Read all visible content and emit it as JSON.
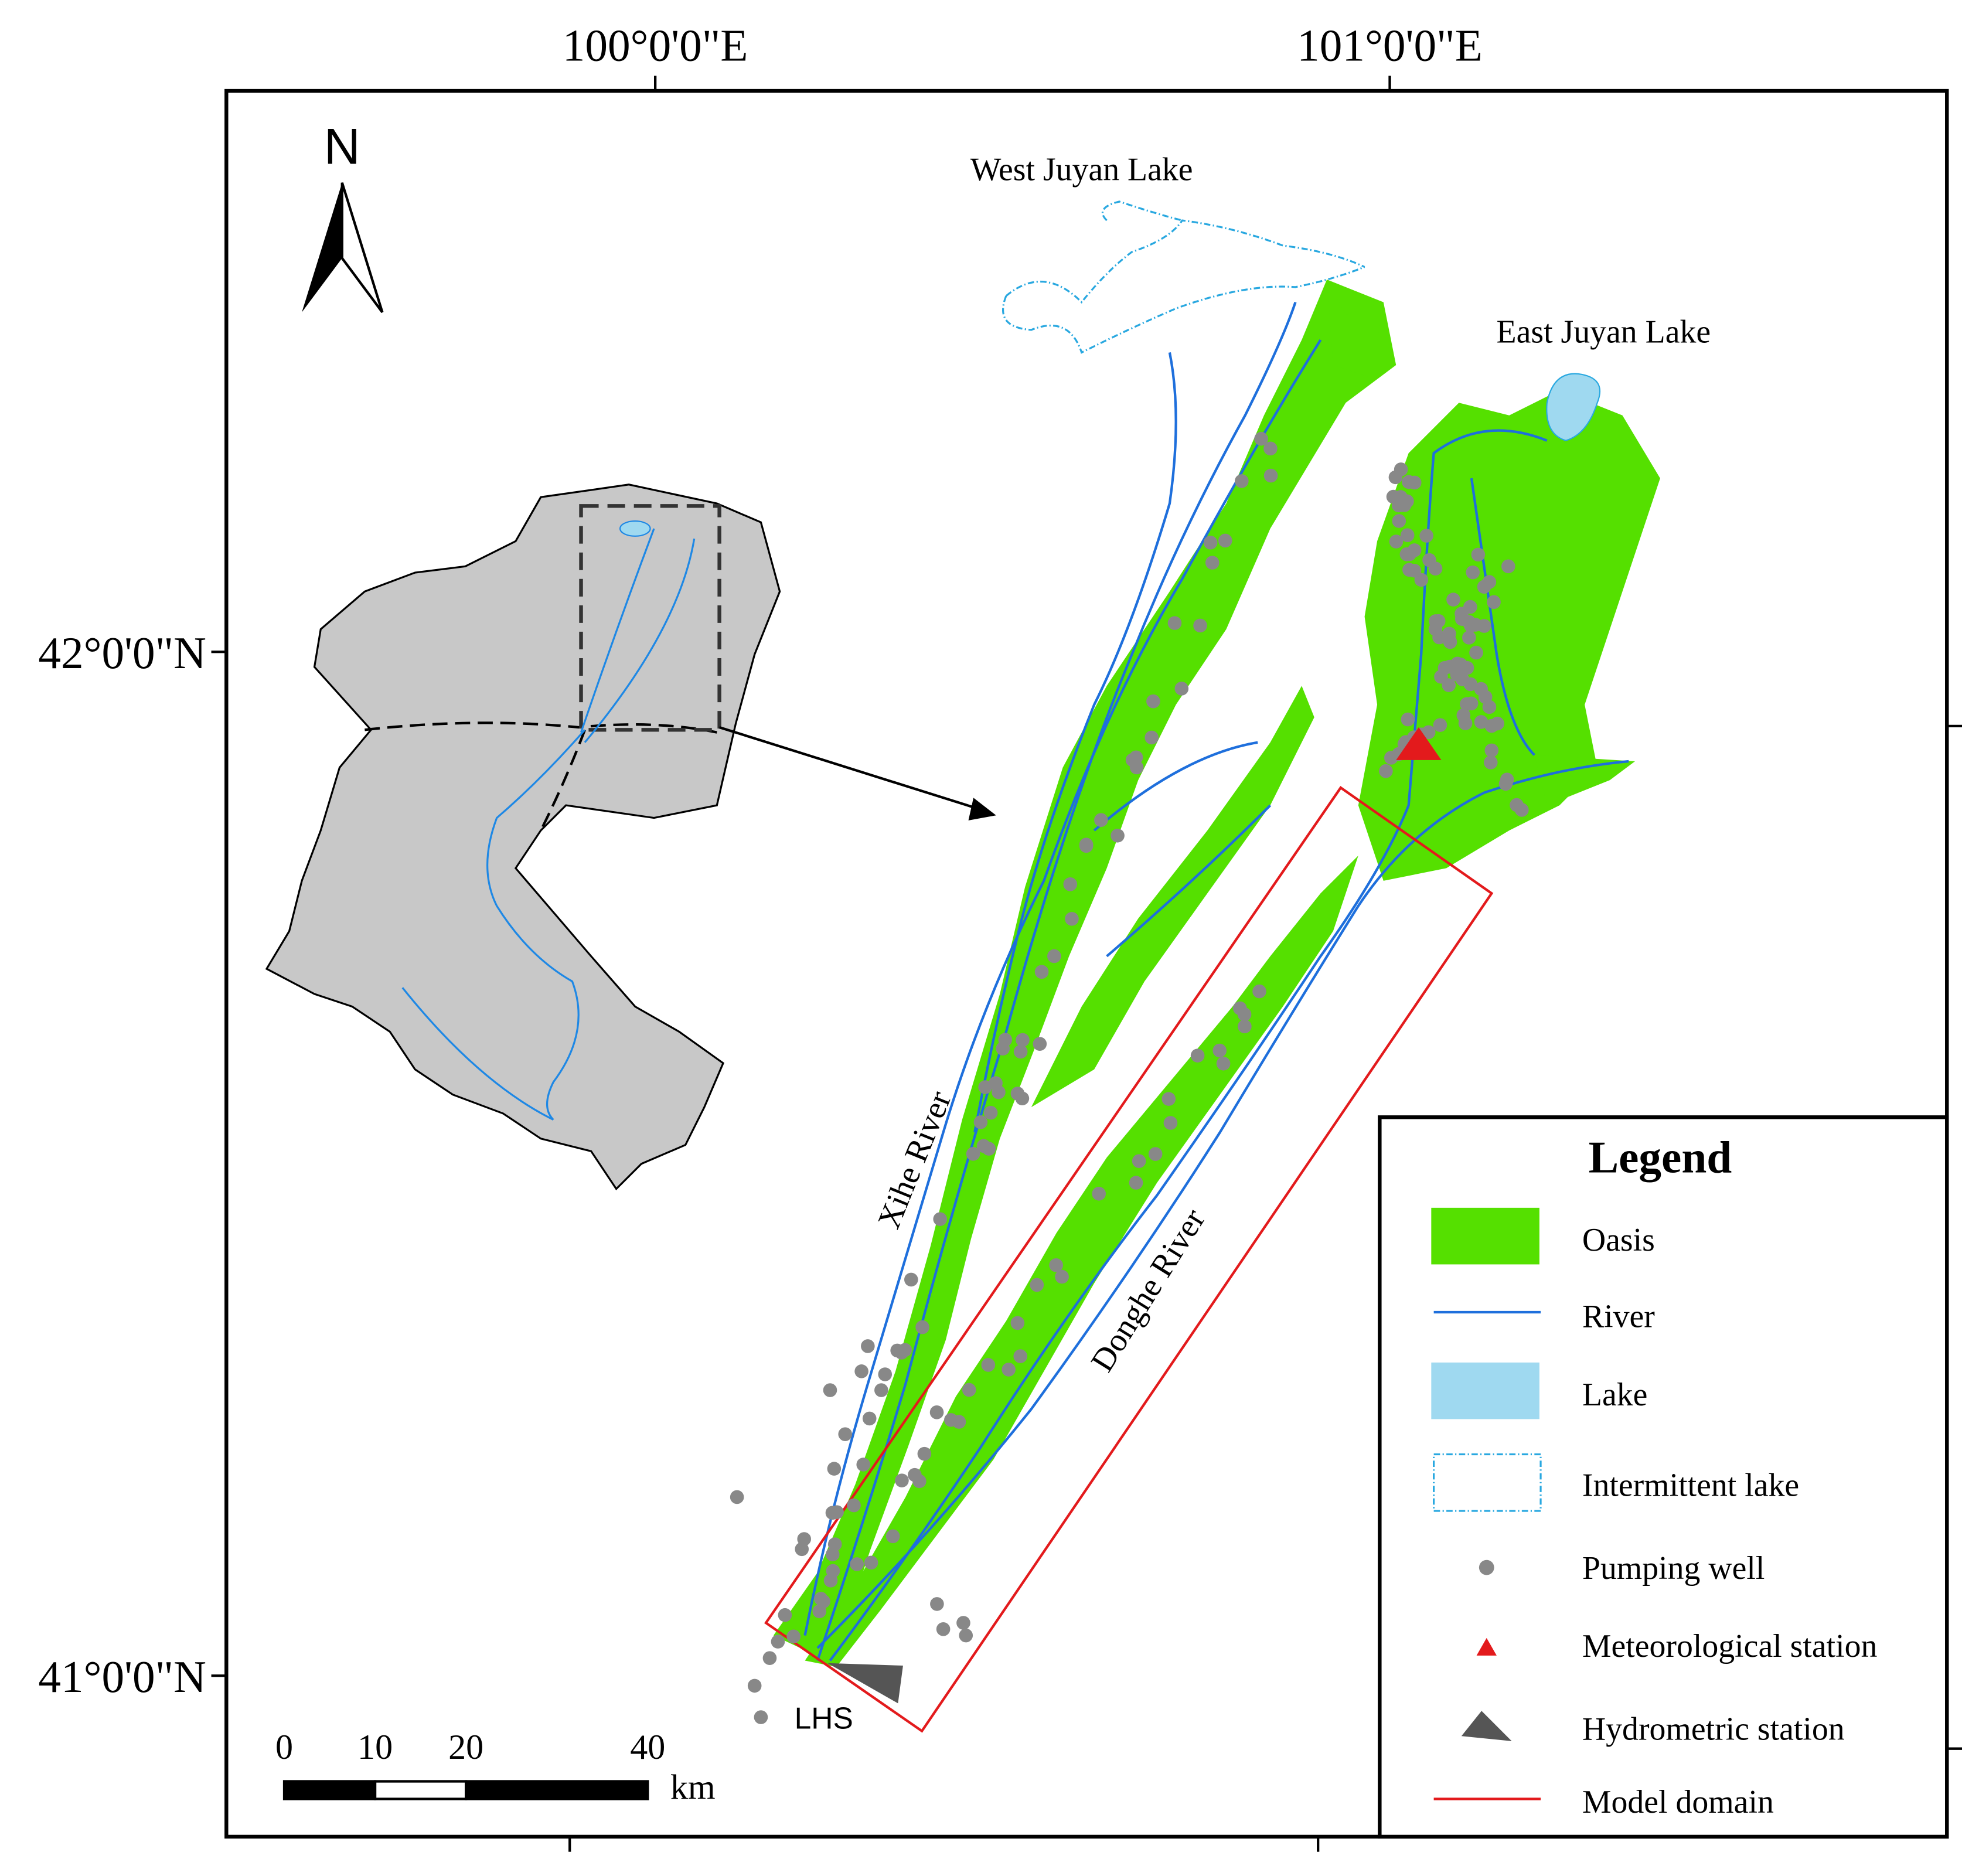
{
  "map": {
    "north_arrow": "N",
    "x_labels": [
      "100°0'0\"E",
      "101°0'0\"E"
    ],
    "y_labels": [
      "42°0'0\"N",
      "41°0'0\"N"
    ],
    "labels": {
      "west_lake": "West Juyan Lake",
      "east_lake": "East Juyan Lake",
      "xihe": "Xihe River",
      "donghe": "Donghe River",
      "lhs": "LHS"
    }
  },
  "legend": {
    "title": "Legend",
    "items": [
      "Oasis",
      "River",
      "Lake",
      "Intermittent lake",
      "Pumping well",
      "Meteorological station",
      "Hydrometric station",
      "Model domain"
    ]
  },
  "scale_bar": {
    "ticks": [
      0,
      10,
      20,
      40
    ],
    "unit": "km"
  }
}
